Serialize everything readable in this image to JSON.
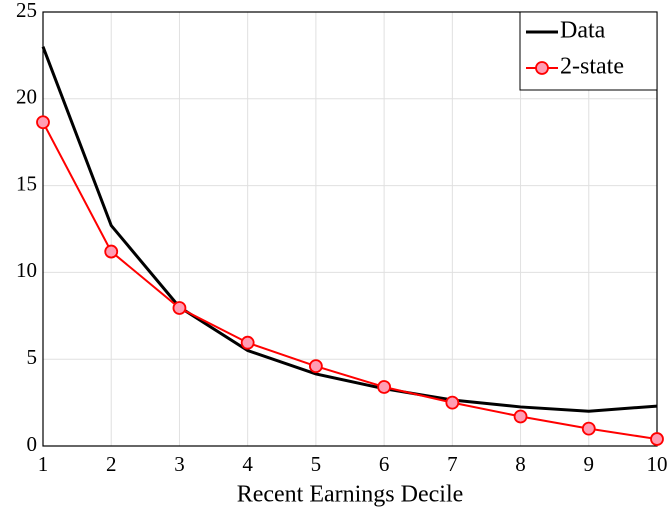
{
  "chart_data": {
    "type": "line",
    "x_label": "Recent Earnings Decile",
    "x": [
      1,
      2,
      3,
      4,
      5,
      6,
      7,
      8,
      9,
      10
    ],
    "series": [
      {
        "name": "Data",
        "color": "#000000",
        "marker": false,
        "values": [
          23.0,
          12.7,
          8.0,
          5.5,
          4.15,
          3.3,
          2.65,
          2.25,
          2.0,
          2.3
        ]
      },
      {
        "name": "2-state",
        "color": "#ff0000",
        "marker": true,
        "values": [
          18.65,
          11.2,
          7.95,
          5.95,
          4.6,
          3.4,
          2.5,
          1.7,
          1.0,
          0.4
        ]
      }
    ],
    "xlim": [
      1,
      10
    ],
    "xticks": [
      1,
      2,
      3,
      4,
      5,
      6,
      7,
      8,
      9,
      10
    ],
    "ylim": [
      0,
      25
    ],
    "yticks": [
      0,
      5,
      10,
      15,
      20,
      25
    ],
    "grid": true,
    "legend": "upper right"
  }
}
